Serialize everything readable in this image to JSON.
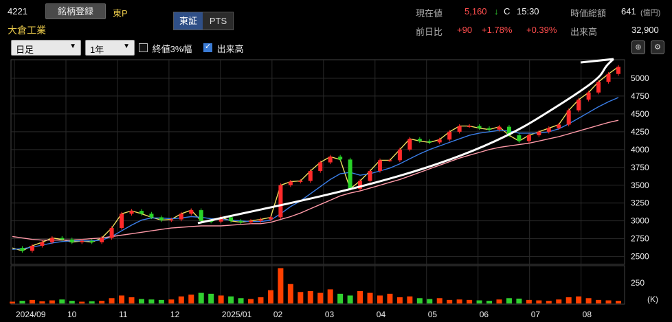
{
  "header": {
    "code": "4221",
    "register_label": "銘柄登録",
    "market": "東P",
    "company": "大倉工業",
    "tab_tse": "東証",
    "tab_pts": "PTS",
    "current_price_label": "現在値",
    "current_price": "5,160",
    "price_arrow": "↓",
    "price_flag": "C",
    "time": "15:30",
    "market_cap_label": "時価総額",
    "market_cap": "641",
    "market_cap_unit": "(億円)",
    "prev_change_label": "前日比",
    "change_abs": "+90",
    "change_pct": "+1.78%",
    "change_pct2": "+0.39%",
    "volume_label": "出来高",
    "volume": "32,900"
  },
  "controls": {
    "period_select": "日足",
    "range_select": "1年",
    "chk_close3_label": "終値3%幅",
    "chk_close3": false,
    "chk_volume_label": "出来高",
    "chk_volume": true
  },
  "icons": {
    "zoom": "zoom-icon",
    "settings": "gear-icon",
    "caret": "caret-down-icon"
  },
  "colors": {
    "up": "#ff2a2a",
    "down": "#28d228",
    "ma_short": "#f0e060",
    "ma_mid": "#3a7ee8",
    "ma_long": "#ff9aa8",
    "vol_up": "#ff4000",
    "vol_down": "#30d030"
  },
  "chart_data": {
    "type": "line",
    "y_ticks": [
      "5000",
      "4750",
      "4500",
      "4250",
      "4000",
      "3750",
      "3500",
      "3250",
      "3000",
      "2750",
      "2500"
    ],
    "ylim": [
      2400,
      5250
    ],
    "x_ticks": [
      "2024/09",
      "10",
      "11",
      "12",
      "2025/01",
      "02",
      "03",
      "04",
      "05",
      "06",
      "07",
      "08"
    ],
    "volume_tick": "250",
    "volume_unit": "(K)",
    "series": [
      {
        "values": [
          2620,
          2580,
          2650,
          2700,
          2760,
          2740,
          2700,
          2720,
          2700,
          2760,
          2900,
          3100,
          3140,
          3100,
          3050,
          3010,
          3020,
          3100,
          3150,
          3000,
          2990,
          3050,
          3000,
          2980,
          3000,
          3020,
          3050,
          3500,
          3550,
          3560,
          3700,
          3820,
          3900,
          3860,
          3450,
          3560,
          3700,
          3850,
          3850,
          4000,
          4150,
          4120,
          4100,
          4140,
          4250,
          4330,
          4330,
          4300,
          4280,
          4320,
          4200,
          4120,
          4200,
          4250,
          4300,
          4350,
          4550,
          4700,
          4800,
          4950,
          5060,
          5160
        ]
      },
      {
        "values": [
          2600,
          2610,
          2630,
          2660,
          2690,
          2710,
          2720,
          2720,
          2720,
          2730,
          2780,
          2860,
          2940,
          3010,
          3040,
          3040,
          3030,
          3040,
          3060,
          3050,
          3030,
          3020,
          3010,
          3000,
          2990,
          2990,
          3010,
          3100,
          3200,
          3280,
          3380,
          3480,
          3580,
          3660,
          3680,
          3640,
          3660,
          3700,
          3740,
          3800,
          3870,
          3940,
          4000,
          4050,
          4100,
          4150,
          4200,
          4230,
          4250,
          4270,
          4260,
          4230,
          4230,
          4230,
          4250,
          4290,
          4360,
          4440,
          4520,
          4600,
          4670,
          4730
        ]
      },
      {
        "values": [
          2780,
          2760,
          2740,
          2730,
          2730,
          2730,
          2730,
          2740,
          2750,
          2760,
          2780,
          2800,
          2820,
          2840,
          2860,
          2880,
          2900,
          2910,
          2920,
          2930,
          2930,
          2930,
          2940,
          2950,
          2960,
          2960,
          2980,
          3020,
          3060,
          3110,
          3170,
          3230,
          3290,
          3350,
          3390,
          3420,
          3460,
          3500,
          3540,
          3580,
          3630,
          3680,
          3730,
          3780,
          3830,
          3880,
          3920,
          3960,
          4000,
          4030,
          4050,
          4070,
          4090,
          4120,
          4150,
          4180,
          4220,
          4260,
          4300,
          4340,
          4380,
          4410
        ]
      }
    ],
    "volume": [
      20,
      30,
      40,
      25,
      35,
      45,
      30,
      20,
      25,
      30,
      60,
      90,
      70,
      50,
      45,
      40,
      45,
      80,
      100,
      120,
      110,
      90,
      80,
      60,
      50,
      70,
      150,
      400,
      220,
      130,
      140,
      120,
      160,
      110,
      90,
      140,
      120,
      90,
      110,
      70,
      80,
      60,
      50,
      60,
      40,
      45,
      40,
      35,
      30,
      45,
      60,
      55,
      40,
      35,
      30,
      45,
      70,
      80,
      60,
      40,
      35,
      30
    ],
    "xlabel": "",
    "ylabel": ""
  }
}
